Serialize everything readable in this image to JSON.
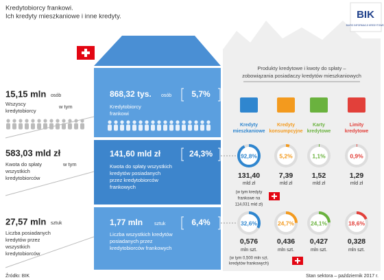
{
  "header": {
    "title_lines": [
      "Kredytobiorcy frankowi.",
      "Ich kredyty mieszkaniowe i inne kredyty."
    ]
  },
  "logo": {
    "name": "BIK",
    "subtitle": "BIURO INFORMACJI KREDYTOWEJ"
  },
  "left": [
    {
      "value": "15,15 mln",
      "unit": "osób",
      "lines": [
        "Wszyscy",
        "kredytobiorcy"
      ],
      "connector": "w tym"
    },
    {
      "value": "583,03 mld zł",
      "lines": [
        "Kwota do spłaty",
        "wszystkich",
        "kredytobiorców"
      ],
      "connector": "w tym"
    },
    {
      "value": "27,57 mln",
      "unit": "sztuk",
      "lines": [
        "Liczba posiadanych",
        "kredytów przez",
        "wszystkich",
        "kredytobiorców"
      ]
    }
  ],
  "franc": [
    {
      "value": "868,32 tys.",
      "unit": "osób",
      "share": "5,7%",
      "lines": [
        "Kredytobiorcy",
        "frankowi"
      ]
    },
    {
      "value": "141,60 mld zł",
      "share": "24,3%",
      "lines": [
        "Kwota do spłaty wszystkich",
        "kredytów posiadanych",
        "przez kredytobiorców",
        "frankowych"
      ]
    },
    {
      "value": "1,77 mln",
      "unit": "sztuk",
      "share": "6,4%",
      "lines": [
        "Liczba wszystkich kredytów",
        "posiadanych przez",
        "kredytobiorców frankowych"
      ]
    }
  ],
  "products": {
    "title_lines": [
      "Produkty kredytowe i kwoty do spłaty –",
      "zobowiązania posiadaczy kredytów mieszkaniowych"
    ],
    "items": [
      {
        "name_lines": [
          "Kredyty",
          "mieszkaniowe"
        ],
        "color": "#2f86cf"
      },
      {
        "name_lines": [
          "Kredyty",
          "konsumpcyjne"
        ],
        "color": "#f39a1e"
      },
      {
        "name_lines": [
          "Karty",
          "kredytowe"
        ],
        "color": "#6ab23e"
      },
      {
        "name_lines": [
          "Limity",
          "kredytowe"
        ],
        "color": "#e2403a"
      }
    ],
    "amount_row": {
      "shares": [
        {
          "value": 92.8,
          "label": "92,8%"
        },
        {
          "value": 5.2,
          "label": "5,2%"
        },
        {
          "value": 1.1,
          "label": "1,1%"
        },
        {
          "value": 0.9,
          "label": "0,9%"
        }
      ],
      "amounts": [
        "131,40",
        "7,39",
        "1,52",
        "1,29"
      ],
      "units": [
        "mld zł",
        "mld zł",
        "mld zł",
        "mld zł"
      ],
      "note_lines": [
        "(w tym kredyty",
        "frankowe na",
        "114,031 mld zł)"
      ]
    },
    "count_row": {
      "shares": [
        {
          "value": 32.6,
          "label": "32,6%"
        },
        {
          "value": 24.7,
          "label": "24,7%"
        },
        {
          "value": 24.1,
          "label": "24,1%"
        },
        {
          "value": 18.6,
          "label": "18,6%"
        }
      ],
      "amounts": [
        "0,576",
        "0,436",
        "0,427",
        "0,328"
      ],
      "units": [
        "mln szt.",
        "mln szt.",
        "mln szt.",
        "mln szt."
      ],
      "note_lines": [
        "(w tym 0,500 mln szt.",
        "kredytów frankowych)"
      ]
    }
  },
  "footer": {
    "source": "Źródło: BIK",
    "status": "Stan sektora – październik 2017 r."
  }
}
